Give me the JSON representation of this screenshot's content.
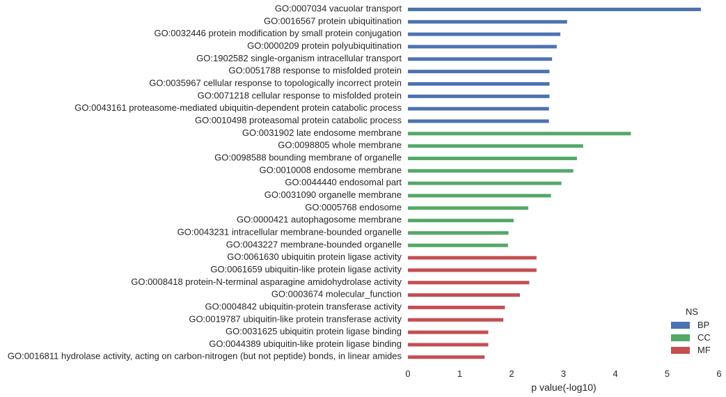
{
  "chart_data": {
    "type": "bar",
    "orientation": "horizontal",
    "xlabel": "p value(-log10)",
    "xlim": [
      0,
      6
    ],
    "xticks": [
      0,
      1,
      2,
      3,
      4,
      5,
      6
    ],
    "grid": false,
    "legend": {
      "title": "NS",
      "position": "bottom-right",
      "entries": [
        {
          "name": "BP",
          "color": "#4c72b0"
        },
        {
          "name": "CC",
          "color": "#55a868"
        },
        {
          "name": "MF",
          "color": "#c44e52"
        }
      ]
    },
    "bars": [
      {
        "label": "GO:0007034 vacuolar transport",
        "value": 5.65,
        "ns": "BP"
      },
      {
        "label": "GO:0016567 protein ubiquitination",
        "value": 3.07,
        "ns": "BP"
      },
      {
        "label": "GO:0032446 protein modification by small protein conjugation",
        "value": 2.94,
        "ns": "BP"
      },
      {
        "label": "GO:0000209 protein polyubiquitination",
        "value": 2.87,
        "ns": "BP"
      },
      {
        "label": "GO:1902582 single-organism intracellular transport",
        "value": 2.78,
        "ns": "BP"
      },
      {
        "label": "GO:0051788 response to misfolded protein",
        "value": 2.73,
        "ns": "BP"
      },
      {
        "label": "GO:0035967 cellular response to topologically incorrect protein",
        "value": 2.73,
        "ns": "BP"
      },
      {
        "label": "GO:0071218 cellular response to misfolded protein",
        "value": 2.73,
        "ns": "BP"
      },
      {
        "label": "GO:0043161 proteasome-mediated ubiquitin-dependent protein catabolic process",
        "value": 2.72,
        "ns": "BP"
      },
      {
        "label": "GO:0010498 proteasomal protein catabolic process",
        "value": 2.72,
        "ns": "BP"
      },
      {
        "label": "GO:0031902 late endosome membrane",
        "value": 4.3,
        "ns": "CC"
      },
      {
        "label": "GO:0098805 whole membrane",
        "value": 3.38,
        "ns": "CC"
      },
      {
        "label": "GO:0098588 bounding membrane of organelle",
        "value": 3.26,
        "ns": "CC"
      },
      {
        "label": "GO:0010008 endosome membrane",
        "value": 3.19,
        "ns": "CC"
      },
      {
        "label": "GO:0044440 endosomal part",
        "value": 2.96,
        "ns": "CC"
      },
      {
        "label": "GO:0031090 organelle membrane",
        "value": 2.76,
        "ns": "CC"
      },
      {
        "label": "GO:0005768 endosome",
        "value": 2.32,
        "ns": "CC"
      },
      {
        "label": "GO:0000421 autophagosome membrane",
        "value": 2.04,
        "ns": "CC"
      },
      {
        "label": "GO:0043231 intracellular membrane-bounded organelle",
        "value": 1.94,
        "ns": "CC"
      },
      {
        "label": "GO:0043227 membrane-bounded organelle",
        "value": 1.93,
        "ns": "CC"
      },
      {
        "label": "GO:0061630 ubiquitin protein ligase activity",
        "value": 2.48,
        "ns": "MF"
      },
      {
        "label": "GO:0061659 ubiquitin-like protein ligase activity",
        "value": 2.48,
        "ns": "MF"
      },
      {
        "label": "GO:0008418 protein-N-terminal asparagine amidohydrolase activity",
        "value": 2.34,
        "ns": "MF"
      },
      {
        "label": "GO:0003674 molecular_function",
        "value": 2.16,
        "ns": "MF"
      },
      {
        "label": "GO:0004842 ubiquitin-protein transferase activity",
        "value": 1.87,
        "ns": "MF"
      },
      {
        "label": "GO:0019787 ubiquitin-like protein transferase activity",
        "value": 1.84,
        "ns": "MF"
      },
      {
        "label": "GO:0031625 ubiquitin protein ligase binding",
        "value": 1.55,
        "ns": "MF"
      },
      {
        "label": "GO:0044389 ubiquitin-like protein ligase binding",
        "value": 1.55,
        "ns": "MF"
      },
      {
        "label": "GO:0016811 hydrolase activity, acting on carbon-nitrogen (but not peptide) bonds, in linear amides",
        "value": 1.48,
        "ns": "MF"
      }
    ]
  }
}
